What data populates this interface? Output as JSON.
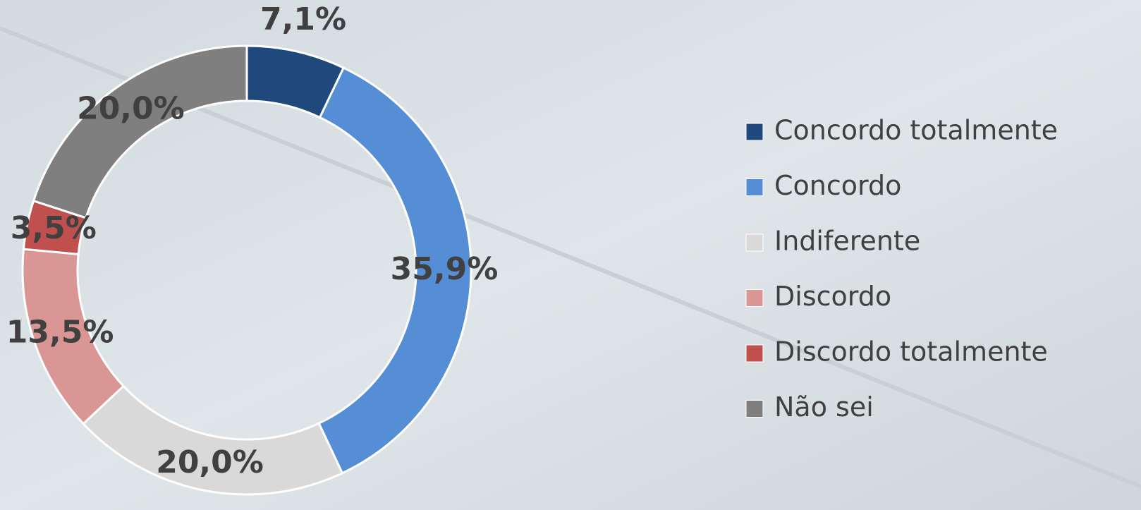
{
  "chart_data": {
    "type": "donut",
    "categories": [
      "Concordo totalmente",
      "Concordo",
      "Indiferente",
      "Discordo",
      "Discordo totalmente",
      "Não sei"
    ],
    "values": [
      7.1,
      35.9,
      20.0,
      13.5,
      3.5,
      20.0
    ],
    "value_labels": [
      "7,1%",
      "35,9%",
      "20,0%",
      "13,5%",
      "3,5%",
      "20,0%"
    ],
    "colors": [
      "#1f497d",
      "#558ed5",
      "#d9d9d9",
      "#d99694",
      "#c0504d",
      "#7f7f7f"
    ],
    "legend": "right"
  }
}
